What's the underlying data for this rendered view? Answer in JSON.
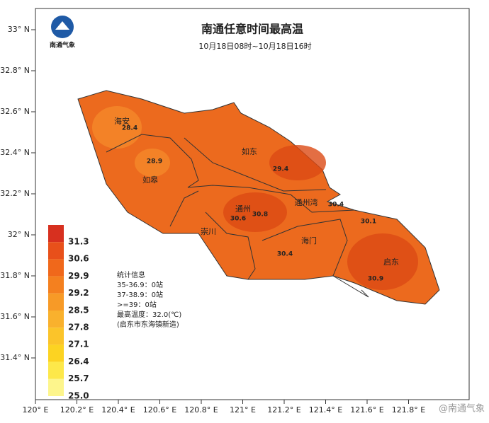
{
  "header": {
    "title": "南通任意时间最高温",
    "subtitle": "10月18日08时~10月18日16时",
    "logo": "南通气象"
  },
  "axes": {
    "lat_labels": [
      "33° N",
      "32.8° N",
      "32.6° N",
      "32.4° N",
      "32.2° N",
      "32° N",
      "31.8° N",
      "31.6° N",
      "31.4° N"
    ],
    "lon_labels": [
      "120° E",
      "120.2° E",
      "120.4° E",
      "120.6° E",
      "120.8° E",
      "121° E",
      "121.2° E",
      "121.4° E",
      "121.6° E",
      "121.8° E"
    ]
  },
  "legend": [
    {
      "label": "31.3",
      "color": "#d7301f"
    },
    {
      "label": "30.6",
      "color": "#e8501a"
    },
    {
      "label": "29.9",
      "color": "#f0681b"
    },
    {
      "label": "29.2",
      "color": "#f4801f"
    },
    {
      "label": "28.5",
      "color": "#f79a27"
    },
    {
      "label": "27.8",
      "color": "#f9b12d"
    },
    {
      "label": "27.1",
      "color": "#fbc42a"
    },
    {
      "label": "26.4",
      "color": "#fcd322"
    },
    {
      "label": "25.7",
      "color": "#fde84a"
    },
    {
      "label": "25.0",
      "color": "#fdf58c"
    }
  ],
  "places": [
    "海安",
    "如皋",
    "如东",
    "通州",
    "崇川",
    "通州湾",
    "海门",
    "启东"
  ],
  "stations": [
    "28.4",
    "28.9",
    "29.4",
    "30.8",
    "30.6",
    "30.4",
    "30.4",
    "30.1",
    "30.9"
  ],
  "stats": [
    "统计信息",
    "35-36.9：0站",
    "37-38.9：0站",
    ">=39：0站",
    "最高温度：32.0(℃)",
    "(启东市东海镇新造)"
  ],
  "watermark": "@南通气象"
}
